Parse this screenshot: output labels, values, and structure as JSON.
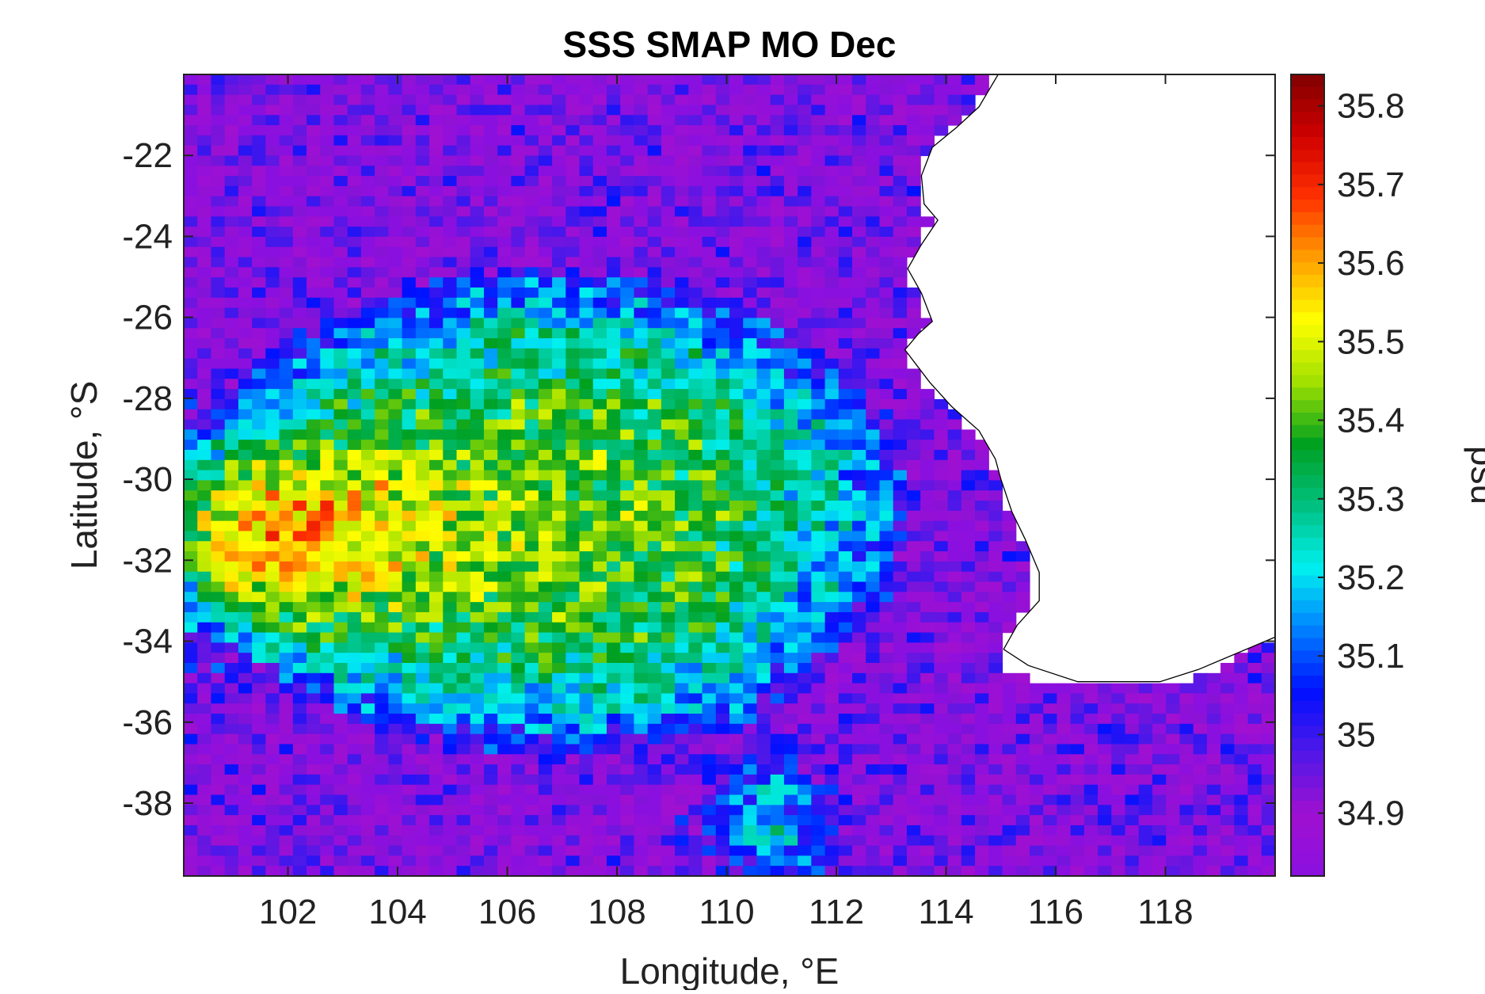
{
  "chart_data": {
    "type": "heatmap",
    "title": "SSS SMAP MO Dec",
    "xlabel": "Longitude, °E",
    "ylabel": "Latitude, °S",
    "colorbar_label": "psu",
    "xlim": [
      100.1,
      120
    ],
    "ylim": [
      -39.8,
      -20
    ],
    "xticks": [
      102,
      104,
      106,
      108,
      110,
      112,
      114,
      116,
      118
    ],
    "yticks": [
      -22,
      -24,
      -26,
      -28,
      -30,
      -32,
      -34,
      -36,
      -38
    ],
    "clim": [
      34.82,
      35.84
    ],
    "colorbar_ticks": [
      34.9,
      35,
      35.1,
      35.2,
      35.3,
      35.4,
      35.5,
      35.6,
      35.7,
      35.8
    ],
    "colormap": [
      "#8a10e0",
      "#a010d0",
      "#5018e8",
      "#0010ff",
      "#0080ff",
      "#00f0f0",
      "#00c080",
      "#00a020",
      "#a0e000",
      "#ffff00",
      "#ffa000",
      "#ff3000",
      "#d00000",
      "#800000"
    ],
    "land_color": "#ffffff",
    "coastline_color": "#000000",
    "grid": false,
    "legend": "colorbar-right"
  }
}
